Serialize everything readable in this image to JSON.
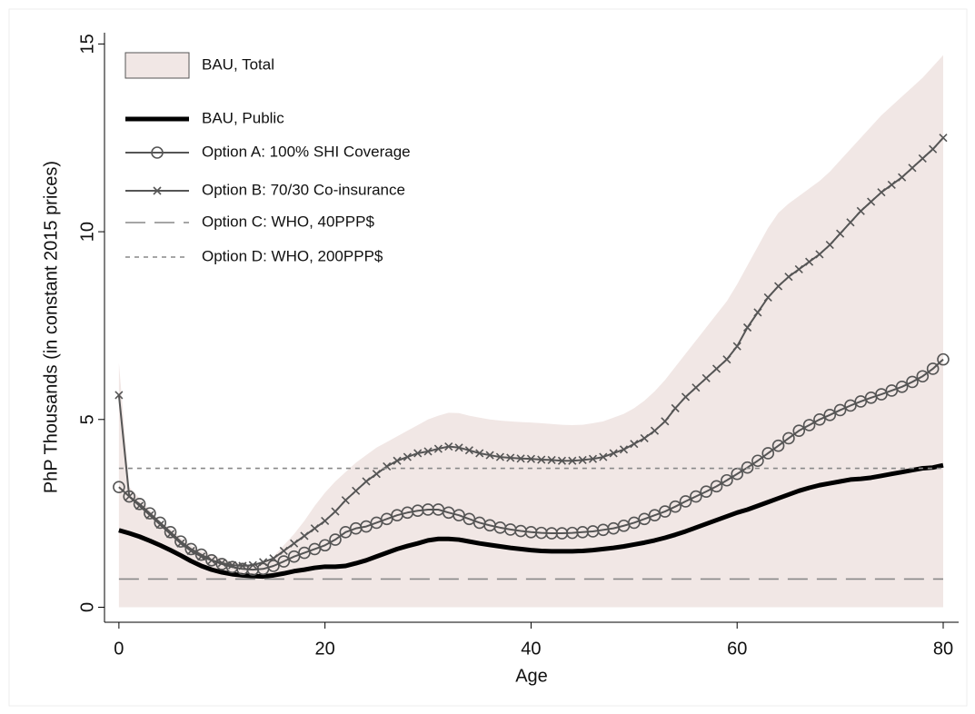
{
  "chart_data": {
    "type": "line",
    "xlabel": "Age",
    "ylabel": "PhP Thousands (in constant 2015 prices)",
    "xlim": [
      -1.4,
      81.5
    ],
    "ylim": [
      -0.4,
      15.3
    ],
    "xticks": [
      0,
      20,
      40,
      60,
      80
    ],
    "yticks": [
      0,
      5,
      10,
      15
    ],
    "legend": "upper left",
    "x": [
      0,
      1,
      2,
      3,
      4,
      5,
      6,
      7,
      8,
      9,
      10,
      11,
      12,
      13,
      14,
      15,
      16,
      17,
      18,
      19,
      20,
      21,
      22,
      23,
      24,
      25,
      26,
      27,
      28,
      29,
      30,
      31,
      32,
      33,
      34,
      35,
      36,
      37,
      38,
      39,
      40,
      41,
      42,
      43,
      44,
      45,
      46,
      47,
      48,
      49,
      50,
      51,
      52,
      53,
      54,
      55,
      56,
      57,
      58,
      59,
      60,
      61,
      62,
      63,
      64,
      65,
      66,
      67,
      68,
      69,
      70,
      71,
      72,
      73,
      74,
      75,
      76,
      77,
      78,
      79,
      80
    ],
    "series": [
      {
        "name": "BAU, Total",
        "style": "area",
        "color": "#f1e7e5",
        "values": [
          6.5,
          3.2,
          2.9,
          2.6,
          2.3,
          2.1,
          1.85,
          1.65,
          1.5,
          1.4,
          1.3,
          1.2,
          1.15,
          1.12,
          1.15,
          1.35,
          1.65,
          1.95,
          2.3,
          2.7,
          3.05,
          3.35,
          3.6,
          3.85,
          4.05,
          4.25,
          4.4,
          4.55,
          4.7,
          4.85,
          5.0,
          5.1,
          5.18,
          5.17,
          5.1,
          5.05,
          5.0,
          4.97,
          4.95,
          4.93,
          4.92,
          4.9,
          4.88,
          4.86,
          4.85,
          4.86,
          4.9,
          4.95,
          5.05,
          5.15,
          5.3,
          5.5,
          5.75,
          6.05,
          6.4,
          6.75,
          7.1,
          7.45,
          7.8,
          8.15,
          8.6,
          9.1,
          9.6,
          10.1,
          10.5,
          10.75,
          10.95,
          11.15,
          11.35,
          11.6,
          11.9,
          12.2,
          12.5,
          12.8,
          13.1,
          13.35,
          13.6,
          13.85,
          14.1,
          14.4,
          14.7
        ]
      },
      {
        "name": "BAU, Public",
        "style": "thick",
        "color": "#000000",
        "values": [
          2.05,
          1.97,
          1.88,
          1.77,
          1.65,
          1.52,
          1.38,
          1.23,
          1.1,
          1.0,
          0.93,
          0.88,
          0.85,
          0.83,
          0.82,
          0.85,
          0.9,
          0.96,
          1.0,
          1.05,
          1.08,
          1.08,
          1.1,
          1.17,
          1.25,
          1.35,
          1.45,
          1.55,
          1.63,
          1.7,
          1.78,
          1.82,
          1.82,
          1.8,
          1.75,
          1.7,
          1.66,
          1.62,
          1.58,
          1.55,
          1.52,
          1.5,
          1.49,
          1.49,
          1.49,
          1.5,
          1.52,
          1.55,
          1.58,
          1.62,
          1.67,
          1.72,
          1.78,
          1.85,
          1.93,
          2.02,
          2.12,
          2.22,
          2.32,
          2.42,
          2.52,
          2.6,
          2.7,
          2.8,
          2.9,
          3.0,
          3.1,
          3.18,
          3.25,
          3.3,
          3.35,
          3.4,
          3.42,
          3.45,
          3.5,
          3.55,
          3.6,
          3.65,
          3.7,
          3.72,
          3.78
        ]
      },
      {
        "name": "Option A: 100% SHI Coverage",
        "style": "solid",
        "marker": "circle",
        "color": "#555555",
        "values": [
          3.2,
          2.95,
          2.75,
          2.5,
          2.25,
          2.0,
          1.75,
          1.55,
          1.4,
          1.25,
          1.15,
          1.07,
          1.02,
          1.0,
          1.02,
          1.1,
          1.22,
          1.35,
          1.45,
          1.55,
          1.65,
          1.8,
          2.0,
          2.1,
          2.15,
          2.25,
          2.35,
          2.45,
          2.52,
          2.57,
          2.6,
          2.6,
          2.52,
          2.45,
          2.35,
          2.25,
          2.18,
          2.12,
          2.07,
          2.03,
          2.0,
          1.98,
          1.97,
          1.97,
          1.98,
          2.0,
          2.02,
          2.06,
          2.1,
          2.17,
          2.25,
          2.35,
          2.45,
          2.55,
          2.68,
          2.82,
          2.95,
          3.08,
          3.22,
          3.38,
          3.55,
          3.72,
          3.9,
          4.1,
          4.3,
          4.5,
          4.7,
          4.85,
          5.0,
          5.12,
          5.25,
          5.37,
          5.48,
          5.58,
          5.67,
          5.77,
          5.87,
          6.0,
          6.15,
          6.35,
          6.6
        ]
      },
      {
        "name": "Option B: 70/30 Co-insurance",
        "style": "solid",
        "marker": "cross",
        "color": "#555555",
        "values": [
          5.65,
          2.95,
          2.7,
          2.45,
          2.2,
          1.95,
          1.7,
          1.5,
          1.35,
          1.25,
          1.18,
          1.12,
          1.1,
          1.12,
          1.2,
          1.3,
          1.5,
          1.7,
          1.9,
          2.1,
          2.3,
          2.55,
          2.85,
          3.1,
          3.35,
          3.55,
          3.75,
          3.9,
          4.0,
          4.1,
          4.15,
          4.22,
          4.28,
          4.25,
          4.18,
          4.1,
          4.05,
          4.0,
          3.98,
          3.96,
          3.95,
          3.93,
          3.92,
          3.9,
          3.9,
          3.92,
          3.95,
          4.0,
          4.1,
          4.2,
          4.35,
          4.5,
          4.7,
          4.95,
          5.3,
          5.6,
          5.85,
          6.1,
          6.35,
          6.6,
          6.95,
          7.45,
          7.85,
          8.25,
          8.55,
          8.8,
          9.0,
          9.2,
          9.4,
          9.65,
          9.95,
          10.25,
          10.55,
          10.8,
          11.05,
          11.25,
          11.45,
          11.7,
          11.95,
          12.2,
          12.5
        ]
      },
      {
        "name": "Option C: WHO,  40PPP$",
        "style": "longdash",
        "color": "#888888",
        "x": [
          0,
          80
        ],
        "values": [
          0.75,
          0.75
        ]
      },
      {
        "name": "Option D: WHO, 200PPP$",
        "style": "shortdash",
        "color": "#888888",
        "x": [
          0,
          80
        ],
        "values": [
          3.7,
          3.7
        ]
      }
    ]
  }
}
